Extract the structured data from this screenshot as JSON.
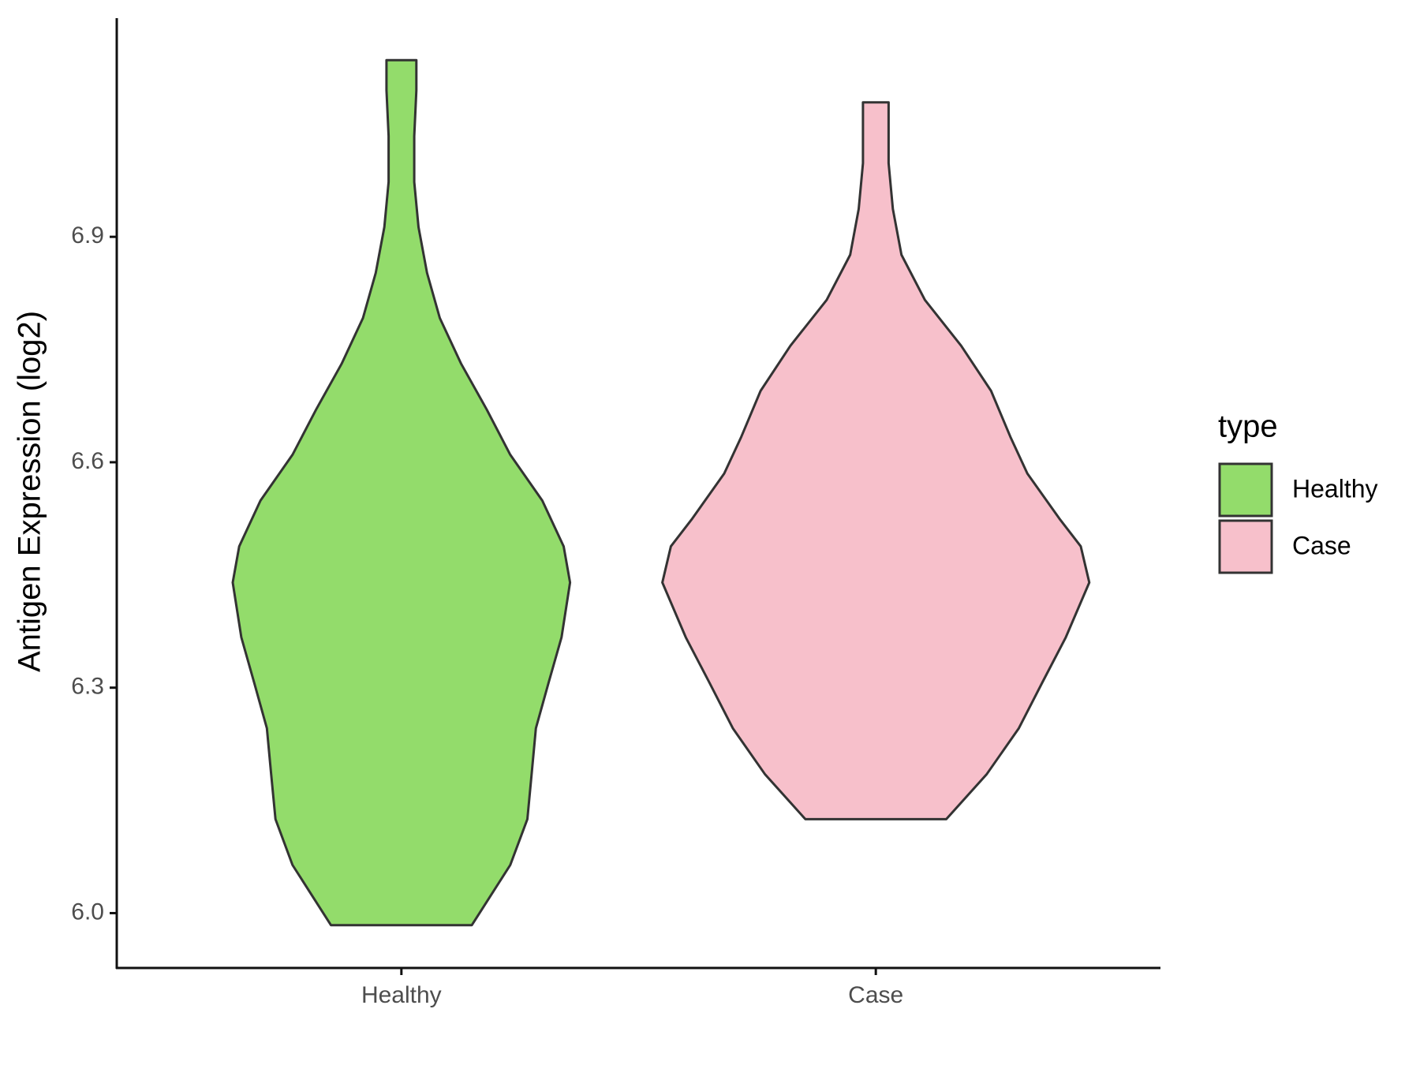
{
  "chart_data": {
    "type": "violin",
    "y_label": "Antigen Expression (log2)",
    "categories": [
      "Healthy",
      "Case"
    ],
    "legend_title": "type",
    "series": [
      {
        "name": "Healthy",
        "color": "#93dc6b",
        "y": [
          5.984,
          6.064,
          6.125,
          6.185,
          6.246,
          6.307,
          6.367,
          6.44,
          6.488,
          6.549,
          6.61,
          6.67,
          6.731,
          6.792,
          6.852,
          6.913,
          6.973,
          7.034,
          7.095,
          7.135
        ],
        "widths": [
          0.33,
          0.51,
          0.59,
          0.61,
          0.63,
          0.69,
          0.75,
          0.79,
          0.76,
          0.66,
          0.51,
          0.4,
          0.28,
          0.18,
          0.12,
          0.08,
          0.06,
          0.06,
          0.07,
          0.07
        ]
      },
      {
        "name": "Case",
        "color": "#f7c0cb",
        "y": [
          6.125,
          6.185,
          6.246,
          6.307,
          6.367,
          6.44,
          6.488,
          6.525,
          6.585,
          6.634,
          6.695,
          6.755,
          6.816,
          6.876,
          6.937,
          6.998,
          7.079
        ],
        "widths": [
          0.33,
          0.52,
          0.67,
          0.78,
          0.89,
          1.0,
          0.96,
          0.86,
          0.71,
          0.63,
          0.54,
          0.4,
          0.23,
          0.12,
          0.08,
          0.06,
          0.06
        ]
      }
    ],
    "ylim": [
      5.927,
      7.191
    ],
    "yticks": [
      {
        "value": 6,
        "label": "6.0"
      },
      6.3,
      6.6,
      6.9
    ]
  }
}
